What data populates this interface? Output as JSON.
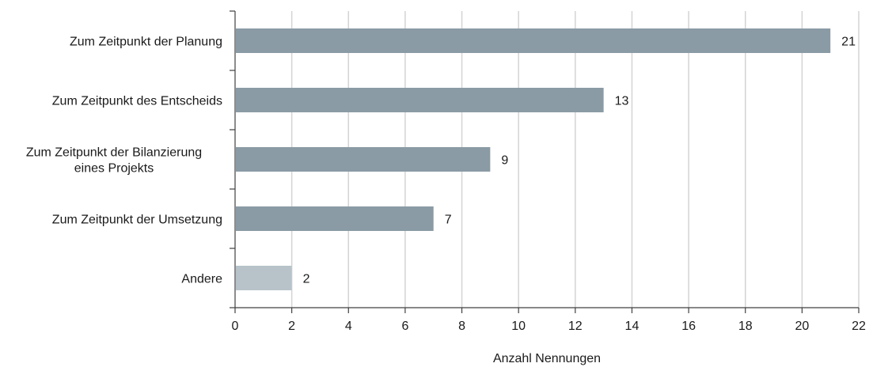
{
  "chart_data": {
    "type": "bar",
    "orientation": "horizontal",
    "categories": [
      [
        "Zum Zeitpunkt der Planung"
      ],
      [
        "Zum Zeitpunkt des Entscheids"
      ],
      [
        "Zum Zeitpunkt der Bilanzierung",
        "eines Projekts"
      ],
      [
        "Zum Zeitpunkt der Umsetzung"
      ],
      [
        "Andere"
      ]
    ],
    "values": [
      21,
      13,
      9,
      7,
      2
    ],
    "data_labels": [
      "21",
      "13",
      "9",
      "7",
      "2"
    ],
    "bar_colors": [
      "#8a9ba5",
      "#8a9ba5",
      "#8a9ba5",
      "#8a9ba5",
      "#b7c3c9"
    ],
    "xlabel": "Anzahl Nennungen",
    "xlim": [
      0,
      22
    ],
    "xticks": [
      0,
      2,
      4,
      6,
      8,
      10,
      12,
      14,
      16,
      18,
      20,
      22
    ],
    "xtick_labels": [
      "0",
      "2",
      "4",
      "6",
      "8",
      "10",
      "12",
      "14",
      "16",
      "18",
      "20",
      "22"
    ],
    "grid": "vertical",
    "legend": "none"
  }
}
